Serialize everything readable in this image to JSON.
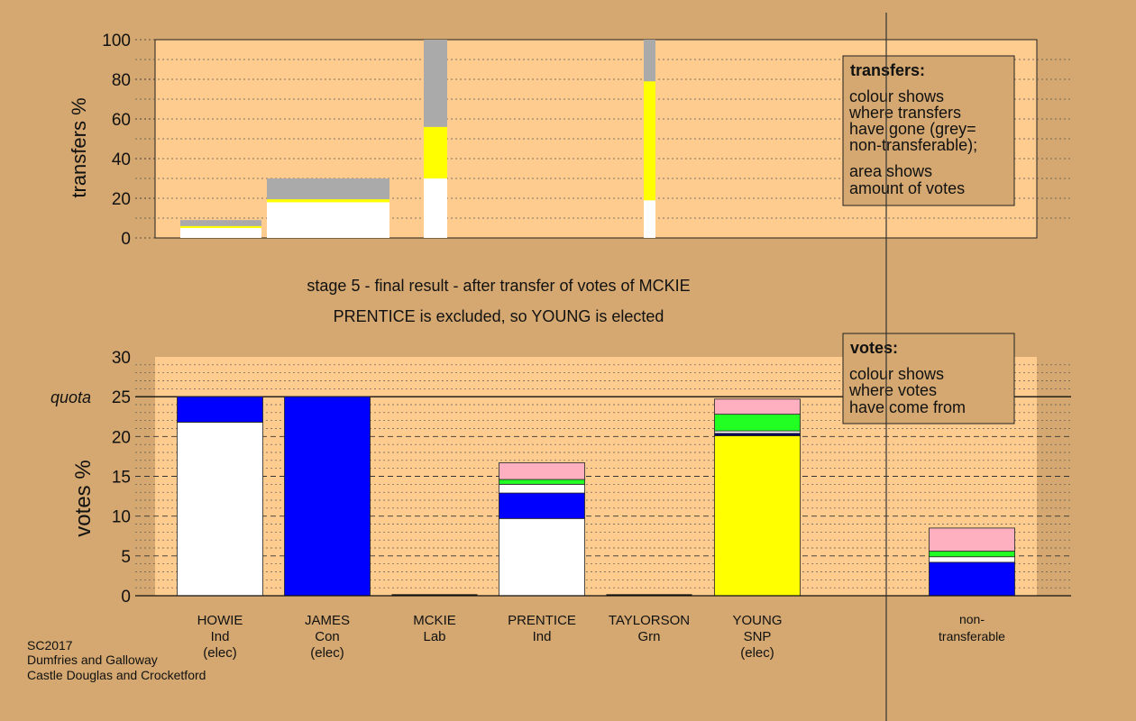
{
  "colors": {
    "background": "#d4a870",
    "plot_bg": "#ffcc90",
    "white": "#ffffff",
    "yellow": "#ffff00",
    "grey": "#aaaaaa",
    "blue": "#0000ff",
    "green": "#22ff22",
    "pink": "#ffb0c0",
    "navy": "#000066"
  },
  "stage_title": "stage 5 - final result - after transfer of votes of MCKIE",
  "stage_subtitle": "PRENTICE is excluded, so YOUNG is elected",
  "footer": [
    "SC2017",
    "Dumfries and Galloway",
    "Castle Douglas and Crocketford"
  ],
  "transfers_legend": {
    "heading": "transfers:",
    "lines": [
      "colour shows",
      "where transfers",
      "have gone (grey=",
      "non-transferable);"
    ],
    "lines2": [
      "area shows",
      "amount of votes"
    ]
  },
  "votes_legend": {
    "heading": "votes:",
    "lines": [
      "colour shows",
      "where votes",
      "have come from"
    ]
  },
  "chart_data": [
    {
      "type": "bar",
      "stacked": true,
      "ylabel": "transfers %",
      "ylim": [
        0,
        100
      ],
      "yticks": [
        0,
        20,
        40,
        60,
        80,
        100
      ],
      "bars": [
        {
          "stage": 1,
          "segments": [
            {
              "color": "white",
              "value": 5
            },
            {
              "color": "yellow",
              "value": 1
            },
            {
              "color": "grey",
              "value": 3
            }
          ]
        },
        {
          "stage": 2,
          "segments": [
            {
              "color": "white",
              "value": 18
            },
            {
              "color": "yellow",
              "value": 1.5
            },
            {
              "color": "grey",
              "value": 10.5
            }
          ]
        },
        {
          "stage": 3,
          "segments": [
            {
              "color": "white",
              "value": 30
            },
            {
              "color": "yellow",
              "value": 26
            },
            {
              "color": "grey",
              "value": 44
            }
          ]
        },
        {
          "stage": 4,
          "segments": [
            {
              "color": "white",
              "value": 19
            },
            {
              "color": "yellow",
              "value": 60
            },
            {
              "color": "grey",
              "value": 21
            }
          ]
        }
      ]
    },
    {
      "type": "bar",
      "stacked": true,
      "ylabel": "votes %",
      "ylim": [
        0,
        30
      ],
      "yticks": [
        0,
        5,
        10,
        15,
        20,
        25,
        30
      ],
      "quota": 25,
      "quota_label": "quota",
      "grid": true,
      "candidates": [
        {
          "name": "HOWIE",
          "party": "Ind",
          "status": "(elec)",
          "segments": [
            {
              "color": "white",
              "value": 21.8
            },
            {
              "color": "blue",
              "value": 3.2
            }
          ]
        },
        {
          "name": "JAMES",
          "party": "Con",
          "status": "(elec)",
          "segments": [
            {
              "color": "blue",
              "value": 25
            }
          ]
        },
        {
          "name": "MCKIE",
          "party": "Lab",
          "status": "",
          "segments": []
        },
        {
          "name": "PRENTICE",
          "party": "Ind",
          "status": "",
          "segments": [
            {
              "color": "white",
              "value": 9.7
            },
            {
              "color": "blue",
              "value": 3.2
            },
            {
              "color": "white",
              "value": 1.1
            },
            {
              "color": "green",
              "value": 0.6
            },
            {
              "color": "pink",
              "value": 2.1
            }
          ]
        },
        {
          "name": "TAYLORSON",
          "party": "Grn",
          "status": "",
          "segments": []
        },
        {
          "name": "YOUNG",
          "party": "SNP",
          "status": "(elec)",
          "segments": [
            {
              "color": "yellow",
              "value": 20.1
            },
            {
              "color": "navy",
              "value": 0.3
            },
            {
              "color": "white",
              "value": 0.3
            },
            {
              "color": "green",
              "value": 2.1
            },
            {
              "color": "pink",
              "value": 1.9
            }
          ]
        }
      ],
      "nontransferable": {
        "label_lines": [
          "non-",
          "transferable"
        ],
        "segments": [
          {
            "color": "blue",
            "value": 4.2
          },
          {
            "color": "white",
            "value": 0.7
          },
          {
            "color": "green",
            "value": 0.7
          },
          {
            "color": "pink",
            "value": 2.9
          }
        ]
      }
    }
  ]
}
